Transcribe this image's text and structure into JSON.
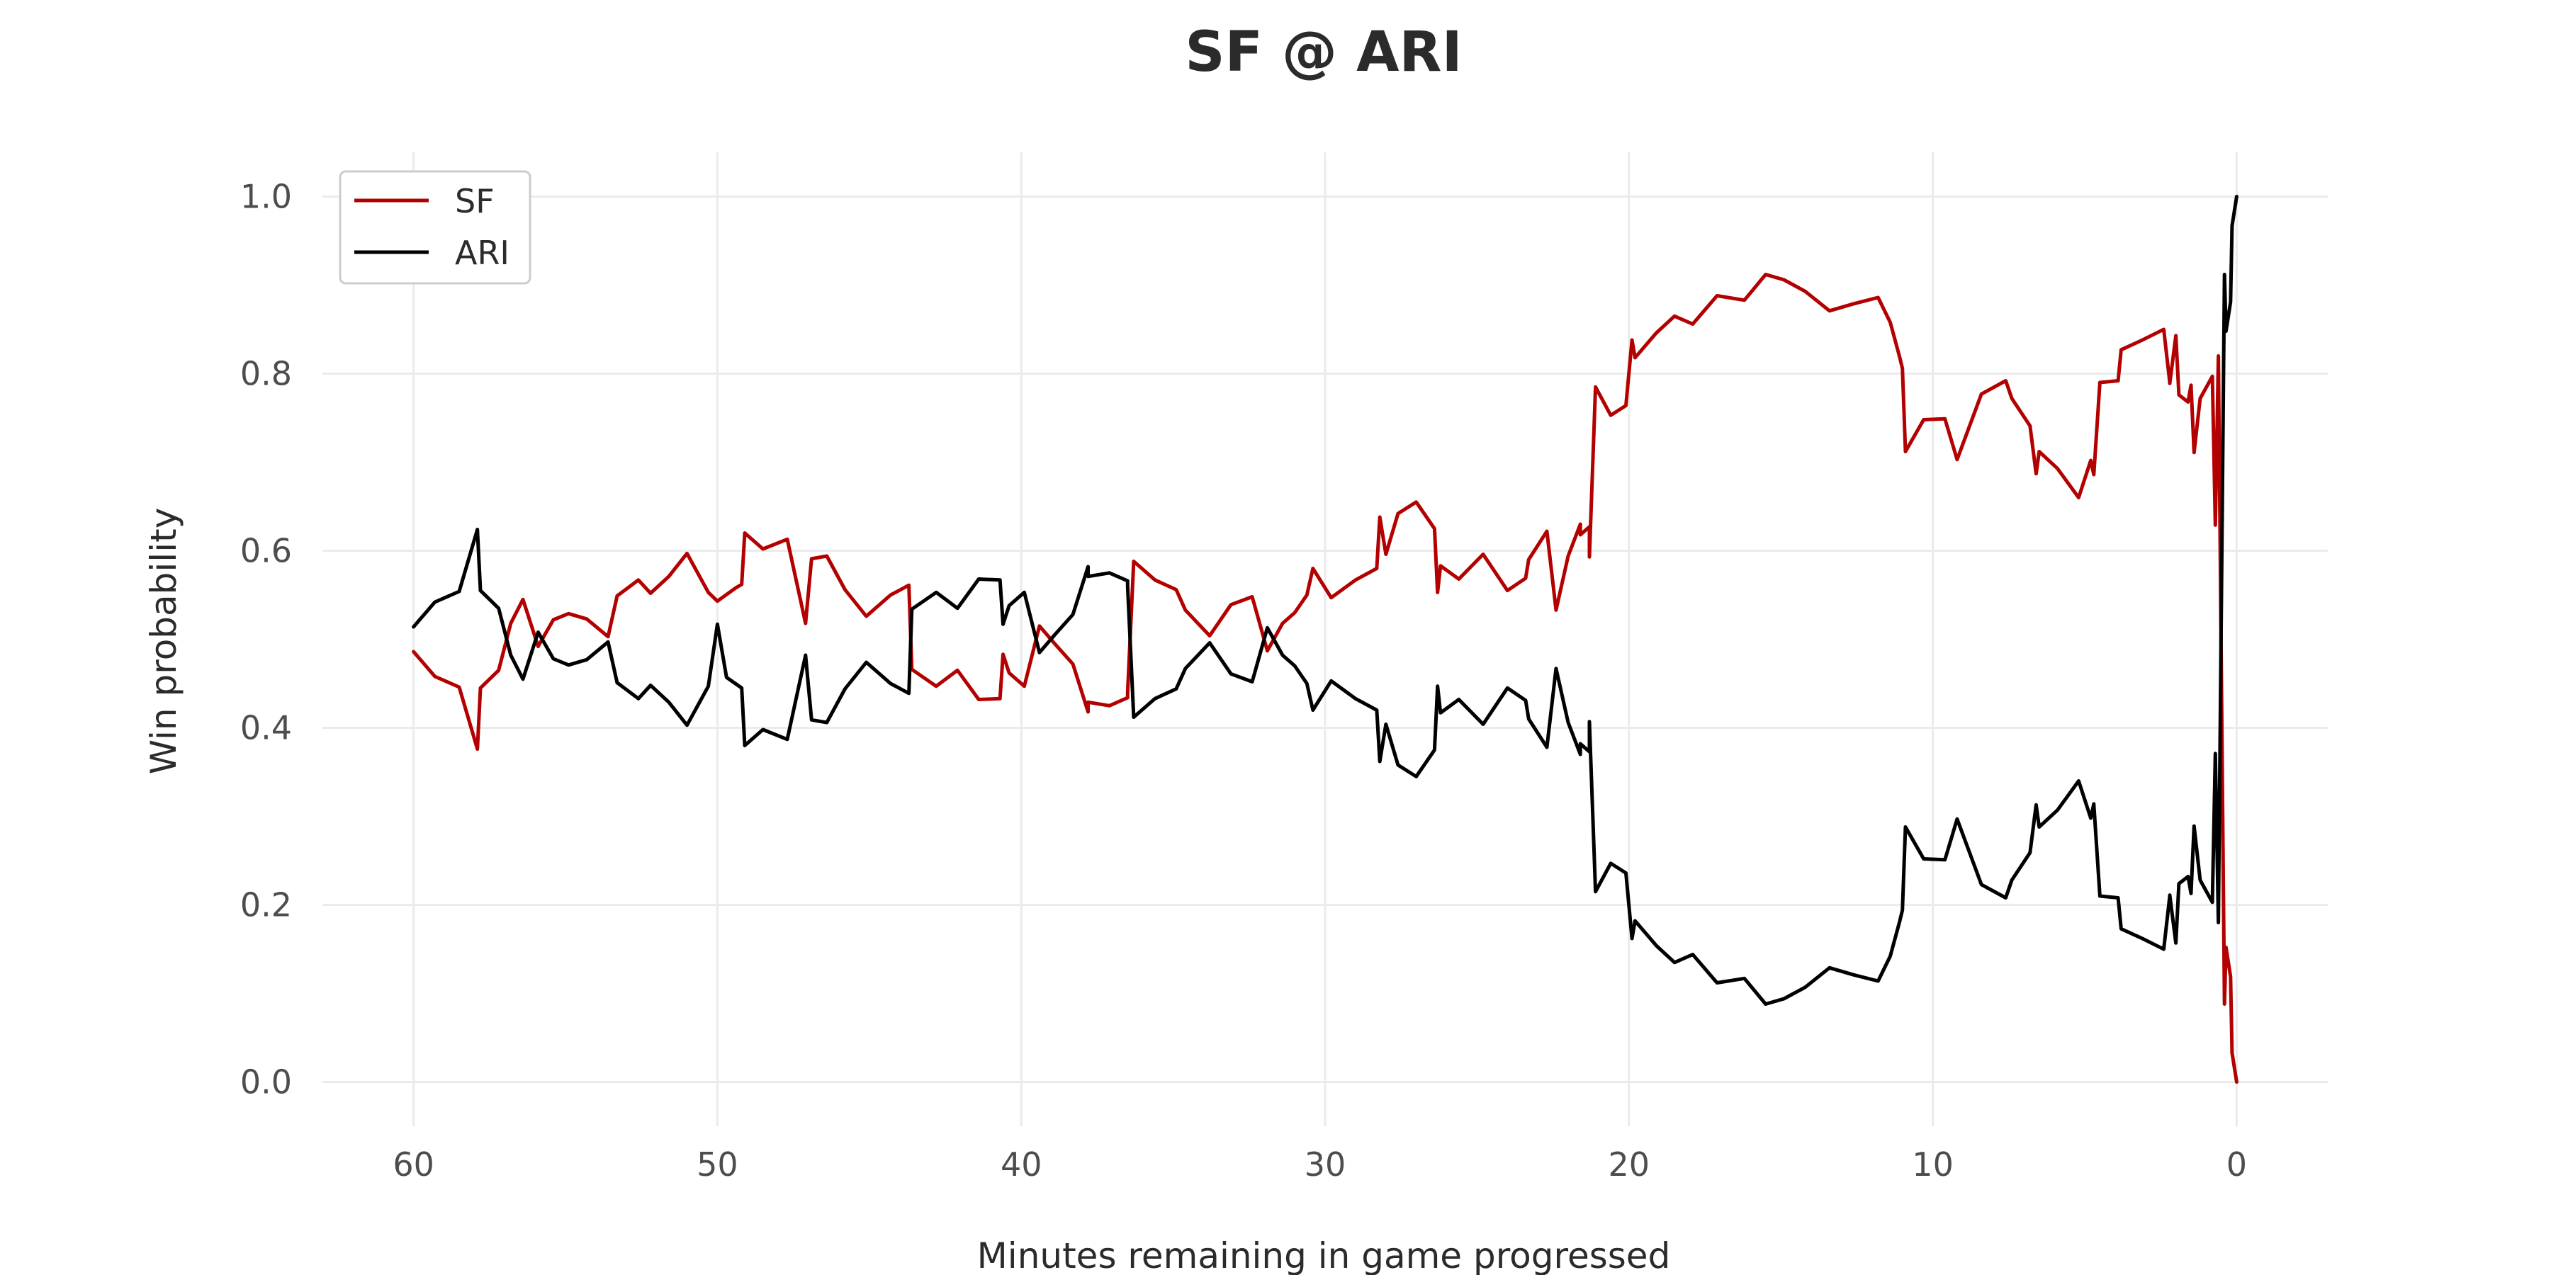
{
  "chart_data": {
    "type": "line",
    "title": "SF @ ARI",
    "xlabel": "Minutes remaining in game progressed",
    "ylabel": "Win probability",
    "xlim": [
      63,
      -3
    ],
    "ylim": [
      -0.05,
      1.05
    ],
    "x_ticks": [
      60,
      50,
      40,
      30,
      20,
      10,
      0
    ],
    "y_ticks": [
      0.0,
      0.2,
      0.4,
      0.6,
      0.8,
      1.0
    ],
    "x_tick_labels": [
      "60",
      "50",
      "40",
      "30",
      "20",
      "10",
      "0"
    ],
    "y_tick_labels": [
      "0.0",
      "0.2",
      "0.4",
      "0.6",
      "0.8",
      "1.0"
    ],
    "grid": true,
    "legend_position": "top-left",
    "series": [
      {
        "name": "SF",
        "color": "#b30000",
        "points": [
          [
            60,
            0.486
          ],
          [
            59.3,
            0.458
          ],
          [
            58.5,
            0.446
          ],
          [
            57.9,
            0.376
          ],
          [
            57.8,
            0.445
          ],
          [
            57.2,
            0.465
          ],
          [
            56.8,
            0.518
          ],
          [
            56.4,
            0.545
          ],
          [
            55.9,
            0.492
          ],
          [
            55.4,
            0.522
          ],
          [
            54.9,
            0.529
          ],
          [
            54.3,
            0.523
          ],
          [
            53.6,
            0.503
          ],
          [
            53.3,
            0.549
          ],
          [
            52.6,
            0.567
          ],
          [
            52.2,
            0.552
          ],
          [
            51.6,
            0.571
          ],
          [
            51,
            0.597
          ],
          [
            50.3,
            0.553
          ],
          [
            50,
            0.543
          ],
          [
            49.4,
            0.558
          ],
          [
            49.2,
            0.562
          ],
          [
            49.1,
            0.62
          ],
          [
            48.5,
            0.602
          ],
          [
            47.7,
            0.613
          ],
          [
            47.1,
            0.518
          ],
          [
            46.9,
            0.591
          ],
          [
            46.4,
            0.594
          ],
          [
            45.8,
            0.556
          ],
          [
            45.1,
            0.526
          ],
          [
            44.3,
            0.55
          ],
          [
            43.7,
            0.561
          ],
          [
            43.6,
            0.466
          ],
          [
            42.8,
            0.447
          ],
          [
            42.1,
            0.465
          ],
          [
            41.4,
            0.432
          ],
          [
            40.7,
            0.433
          ],
          [
            40.6,
            0.483
          ],
          [
            40.4,
            0.462
          ],
          [
            39.9,
            0.447
          ],
          [
            39.4,
            0.515
          ],
          [
            38.9,
            0.495
          ],
          [
            38.3,
            0.472
          ],
          [
            37.8,
            0.418
          ],
          [
            37.8,
            0.429
          ],
          [
            37.1,
            0.425
          ],
          [
            36.5,
            0.434
          ],
          [
            36.5,
            0.44
          ],
          [
            36.3,
            0.588
          ],
          [
            35.6,
            0.567
          ],
          [
            34.9,
            0.556
          ],
          [
            34.6,
            0.533
          ],
          [
            33.8,
            0.504
          ],
          [
            33.1,
            0.539
          ],
          [
            32.4,
            0.548
          ],
          [
            31.9,
            0.487
          ],
          [
            31.4,
            0.518
          ],
          [
            31,
            0.53
          ],
          [
            30.6,
            0.55
          ],
          [
            30.4,
            0.58
          ],
          [
            29.8,
            0.547
          ],
          [
            29,
            0.567
          ],
          [
            28.3,
            0.58
          ],
          [
            28.2,
            0.638
          ],
          [
            28,
            0.596
          ],
          [
            27.6,
            0.642
          ],
          [
            27,
            0.655
          ],
          [
            26.4,
            0.625
          ],
          [
            26.3,
            0.553
          ],
          [
            26.2,
            0.583
          ],
          [
            25.6,
            0.568
          ],
          [
            24.8,
            0.596
          ],
          [
            24,
            0.555
          ],
          [
            23.4,
            0.569
          ],
          [
            23.3,
            0.59
          ],
          [
            22.7,
            0.622
          ],
          [
            22.4,
            0.533
          ],
          [
            22,
            0.594
          ],
          [
            21.6,
            0.63
          ],
          [
            21.6,
            0.618
          ],
          [
            21.3,
            0.627
          ],
          [
            21.3,
            0.593
          ],
          [
            21.1,
            0.785
          ],
          [
            20.6,
            0.753
          ],
          [
            20.1,
            0.764
          ],
          [
            19.9,
            0.838
          ],
          [
            19.8,
            0.818
          ],
          [
            19.1,
            0.846
          ],
          [
            18.5,
            0.865
          ],
          [
            17.9,
            0.856
          ],
          [
            17.1,
            0.888
          ],
          [
            16.2,
            0.883
          ],
          [
            15.5,
            0.912
          ],
          [
            14.9,
            0.906
          ],
          [
            14.2,
            0.893
          ],
          [
            13.4,
            0.871
          ],
          [
            12.6,
            0.879
          ],
          [
            11.8,
            0.886
          ],
          [
            11.4,
            0.858
          ],
          [
            11.1,
            0.82
          ],
          [
            11,
            0.806
          ],
          [
            10.9,
            0.712
          ],
          [
            10.3,
            0.748
          ],
          [
            9.6,
            0.749
          ],
          [
            9.2,
            0.703
          ],
          [
            8.4,
            0.777
          ],
          [
            7.6,
            0.792
          ],
          [
            7.4,
            0.772
          ],
          [
            6.8,
            0.741
          ],
          [
            6.6,
            0.687
          ],
          [
            6.5,
            0.712
          ],
          [
            5.9,
            0.693
          ],
          [
            5.2,
            0.66
          ],
          [
            4.8,
            0.702
          ],
          [
            4.7,
            0.686
          ],
          [
            4.5,
            0.79
          ],
          [
            3.9,
            0.792
          ],
          [
            3.8,
            0.827
          ],
          [
            3.1,
            0.838
          ],
          [
            2.4,
            0.85
          ],
          [
            2.2,
            0.79
          ],
          [
            2.2,
            0.789
          ],
          [
            2,
            0.843
          ],
          [
            1.9,
            0.776
          ],
          [
            1.6,
            0.768
          ],
          [
            1.5,
            0.787
          ],
          [
            1.4,
            0.711
          ],
          [
            1.2,
            0.772
          ],
          [
            0.8,
            0.797
          ],
          [
            0.7,
            0.629
          ],
          [
            0.6,
            0.82
          ],
          [
            0.4,
            0.088
          ],
          [
            0.35,
            0.152
          ],
          [
            0.2,
            0.119
          ],
          [
            0.15,
            0.033
          ],
          [
            0,
            0.0
          ]
        ]
      },
      {
        "name": "ARI",
        "color": "#000000",
        "points": [
          [
            60,
            0.514
          ],
          [
            59.3,
            0.542
          ],
          [
            58.5,
            0.554
          ],
          [
            57.9,
            0.624
          ],
          [
            57.8,
            0.555
          ],
          [
            57.2,
            0.535
          ],
          [
            56.8,
            0.482
          ],
          [
            56.4,
            0.455
          ],
          [
            55.9,
            0.508
          ],
          [
            55.4,
            0.478
          ],
          [
            54.9,
            0.471
          ],
          [
            54.3,
            0.477
          ],
          [
            53.6,
            0.497
          ],
          [
            53.3,
            0.451
          ],
          [
            52.6,
            0.433
          ],
          [
            52.2,
            0.448
          ],
          [
            51.6,
            0.429
          ],
          [
            51,
            0.403
          ],
          [
            50.3,
            0.447
          ],
          [
            50,
            0.517
          ],
          [
            49.7,
            0.457
          ],
          [
            49.2,
            0.445
          ],
          [
            49.1,
            0.38
          ],
          [
            48.5,
            0.398
          ],
          [
            47.7,
            0.387
          ],
          [
            47.1,
            0.482
          ],
          [
            46.9,
            0.409
          ],
          [
            46.4,
            0.406
          ],
          [
            45.8,
            0.444
          ],
          [
            45.1,
            0.474
          ],
          [
            44.3,
            0.45
          ],
          [
            43.7,
            0.439
          ],
          [
            43.6,
            0.534
          ],
          [
            42.8,
            0.553
          ],
          [
            42.1,
            0.535
          ],
          [
            41.4,
            0.568
          ],
          [
            40.7,
            0.567
          ],
          [
            40.6,
            0.517
          ],
          [
            40.4,
            0.538
          ],
          [
            39.9,
            0.553
          ],
          [
            39.4,
            0.485
          ],
          [
            38.9,
            0.505
          ],
          [
            38.3,
            0.528
          ],
          [
            37.8,
            0.582
          ],
          [
            37.8,
            0.571
          ],
          [
            37.1,
            0.575
          ],
          [
            36.5,
            0.566
          ],
          [
            36.5,
            0.56
          ],
          [
            36.3,
            0.412
          ],
          [
            35.6,
            0.433
          ],
          [
            34.9,
            0.444
          ],
          [
            34.6,
            0.467
          ],
          [
            33.8,
            0.496
          ],
          [
            33.1,
            0.461
          ],
          [
            32.4,
            0.452
          ],
          [
            31.9,
            0.513
          ],
          [
            31.4,
            0.482
          ],
          [
            31,
            0.47
          ],
          [
            30.6,
            0.45
          ],
          [
            30.4,
            0.42
          ],
          [
            29.8,
            0.453
          ],
          [
            29,
            0.433
          ],
          [
            28.3,
            0.42
          ],
          [
            28.2,
            0.362
          ],
          [
            28,
            0.404
          ],
          [
            27.6,
            0.358
          ],
          [
            27,
            0.345
          ],
          [
            26.4,
            0.375
          ],
          [
            26.3,
            0.447
          ],
          [
            26.2,
            0.417
          ],
          [
            25.6,
            0.432
          ],
          [
            24.8,
            0.404
          ],
          [
            24,
            0.445
          ],
          [
            23.4,
            0.431
          ],
          [
            23.3,
            0.41
          ],
          [
            22.7,
            0.378
          ],
          [
            22.4,
            0.467
          ],
          [
            22,
            0.406
          ],
          [
            21.6,
            0.37
          ],
          [
            21.6,
            0.382
          ],
          [
            21.3,
            0.373
          ],
          [
            21.3,
            0.407
          ],
          [
            21.1,
            0.215
          ],
          [
            20.6,
            0.247
          ],
          [
            20.1,
            0.236
          ],
          [
            19.9,
            0.162
          ],
          [
            19.8,
            0.182
          ],
          [
            19.1,
            0.154
          ],
          [
            18.5,
            0.135
          ],
          [
            17.9,
            0.144
          ],
          [
            17.1,
            0.112
          ],
          [
            16.2,
            0.117
          ],
          [
            15.5,
            0.088
          ],
          [
            14.9,
            0.094
          ],
          [
            14.2,
            0.107
          ],
          [
            13.4,
            0.129
          ],
          [
            12.6,
            0.121
          ],
          [
            11.8,
            0.114
          ],
          [
            11.4,
            0.142
          ],
          [
            11.1,
            0.18
          ],
          [
            11,
            0.194
          ],
          [
            10.9,
            0.288
          ],
          [
            10.3,
            0.252
          ],
          [
            9.6,
            0.251
          ],
          [
            9.2,
            0.297
          ],
          [
            8.4,
            0.223
          ],
          [
            7.6,
            0.208
          ],
          [
            7.4,
            0.228
          ],
          [
            6.8,
            0.259
          ],
          [
            6.6,
            0.313
          ],
          [
            6.5,
            0.288
          ],
          [
            5.9,
            0.307
          ],
          [
            5.2,
            0.34
          ],
          [
            4.8,
            0.298
          ],
          [
            4.7,
            0.314
          ],
          [
            4.5,
            0.21
          ],
          [
            3.9,
            0.208
          ],
          [
            3.8,
            0.173
          ],
          [
            3.1,
            0.162
          ],
          [
            2.4,
            0.15
          ],
          [
            2.2,
            0.21
          ],
          [
            2.2,
            0.211
          ],
          [
            2,
            0.157
          ],
          [
            1.9,
            0.224
          ],
          [
            1.6,
            0.232
          ],
          [
            1.5,
            0.213
          ],
          [
            1.4,
            0.289
          ],
          [
            1.2,
            0.228
          ],
          [
            0.8,
            0.203
          ],
          [
            0.7,
            0.371
          ],
          [
            0.6,
            0.18
          ],
          [
            0.4,
            0.912
          ],
          [
            0.35,
            0.848
          ],
          [
            0.2,
            0.881
          ],
          [
            0.15,
            0.967
          ],
          [
            0,
            1.0
          ]
        ]
      }
    ]
  }
}
